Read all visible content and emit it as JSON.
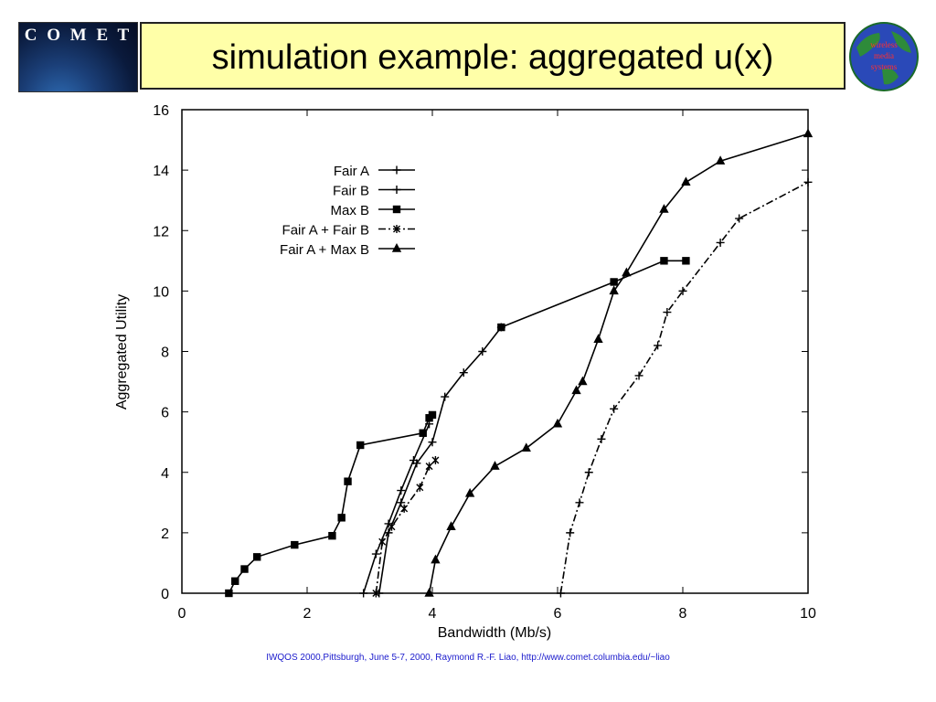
{
  "header": {
    "logo_left_text": "C O M E T",
    "title": "simulation example: aggregated u(x)",
    "logo_right_text": "wireless media systems"
  },
  "footer": {
    "citation": "IWQOS 2000,Pittsburgh, June 5-7, 2000,  Raymond R.-F. Liao, http://www.comet.columbia.edu/~liao"
  },
  "chart_data": {
    "type": "line",
    "xlabel": "Bandwidth (Mb/s)",
    "ylabel": "Aggregated Utility",
    "xlim": [
      0,
      10
    ],
    "ylim": [
      0,
      16
    ],
    "xticks": [
      0,
      2,
      4,
      6,
      8,
      10
    ],
    "yticks": [
      0,
      2,
      4,
      6,
      8,
      10,
      12,
      14,
      16
    ],
    "grid": false,
    "legend_position": "top-left",
    "series": [
      {
        "name": "Fair A",
        "marker": "+",
        "dash": "solid",
        "points": [
          [
            2.9,
            0
          ],
          [
            3.1,
            1.3
          ],
          [
            3.3,
            2.3
          ],
          [
            3.5,
            3.4
          ],
          [
            3.7,
            4.4
          ],
          [
            3.95,
            5.6
          ]
        ]
      },
      {
        "name": "Fair B",
        "marker": "+",
        "dash": "solid",
        "points": [
          [
            3.15,
            0
          ],
          [
            3.3,
            2.0
          ],
          [
            3.5,
            3.0
          ],
          [
            3.75,
            4.3
          ],
          [
            4.0,
            5.0
          ],
          [
            4.2,
            6.5
          ],
          [
            4.5,
            7.3
          ],
          [
            4.8,
            8.0
          ],
          [
            5.1,
            8.8
          ]
        ]
      },
      {
        "name": "Max B",
        "marker": "square",
        "dash": "solid",
        "points": [
          [
            0.75,
            0
          ],
          [
            0.85,
            0.4
          ],
          [
            1.0,
            0.8
          ],
          [
            1.2,
            1.2
          ],
          [
            1.8,
            1.6
          ],
          [
            2.4,
            1.9
          ],
          [
            2.55,
            2.5
          ],
          [
            2.65,
            3.7
          ],
          [
            2.85,
            4.9
          ],
          [
            3.85,
            5.3
          ],
          [
            3.95,
            5.8
          ],
          [
            4.0,
            5.9
          ]
        ]
      },
      {
        "name": "Fair A + Fair B",
        "marker": "x",
        "dash": "dashdot",
        "points": [
          [
            3.1,
            0
          ],
          [
            3.2,
            1.7
          ],
          [
            3.35,
            2.2
          ],
          [
            3.55,
            2.8
          ],
          [
            3.8,
            3.5
          ],
          [
            3.95,
            4.2
          ],
          [
            4.05,
            4.4
          ]
        ]
      },
      {
        "name": "Fair A + Max B",
        "marker": "triangle",
        "dash": "solid",
        "points": [
          [
            3.95,
            0
          ],
          [
            4.05,
            1.1
          ],
          [
            4.3,
            2.2
          ],
          [
            4.6,
            3.3
          ],
          [
            5.0,
            4.2
          ],
          [
            5.5,
            4.8
          ],
          [
            6.0,
            5.6
          ],
          [
            6.3,
            6.7
          ],
          [
            6.4,
            7.0
          ],
          [
            6.65,
            8.4
          ],
          [
            6.9,
            10.0
          ],
          [
            7.1,
            10.6
          ],
          [
            7.7,
            12.7
          ],
          [
            8.05,
            13.6
          ],
          [
            8.6,
            14.3
          ],
          [
            10.0,
            15.2
          ]
        ]
      },
      {
        "name": "",
        "marker": "square",
        "dash": "solid",
        "points": [
          [
            5.1,
            8.8
          ],
          [
            6.9,
            10.3
          ],
          [
            7.7,
            11.0
          ],
          [
            8.05,
            11.0
          ]
        ]
      },
      {
        "name": "",
        "marker": "+",
        "dash": "dashdot",
        "points": [
          [
            6.05,
            0
          ],
          [
            6.2,
            2.0
          ],
          [
            6.35,
            3.0
          ],
          [
            6.5,
            4.0
          ],
          [
            6.7,
            5.1
          ],
          [
            6.9,
            6.1
          ],
          [
            7.3,
            7.2
          ],
          [
            7.6,
            8.2
          ],
          [
            7.75,
            9.3
          ],
          [
            8.0,
            10.0
          ],
          [
            8.6,
            11.6
          ],
          [
            8.9,
            12.4
          ],
          [
            10.0,
            13.6
          ]
        ]
      }
    ]
  }
}
